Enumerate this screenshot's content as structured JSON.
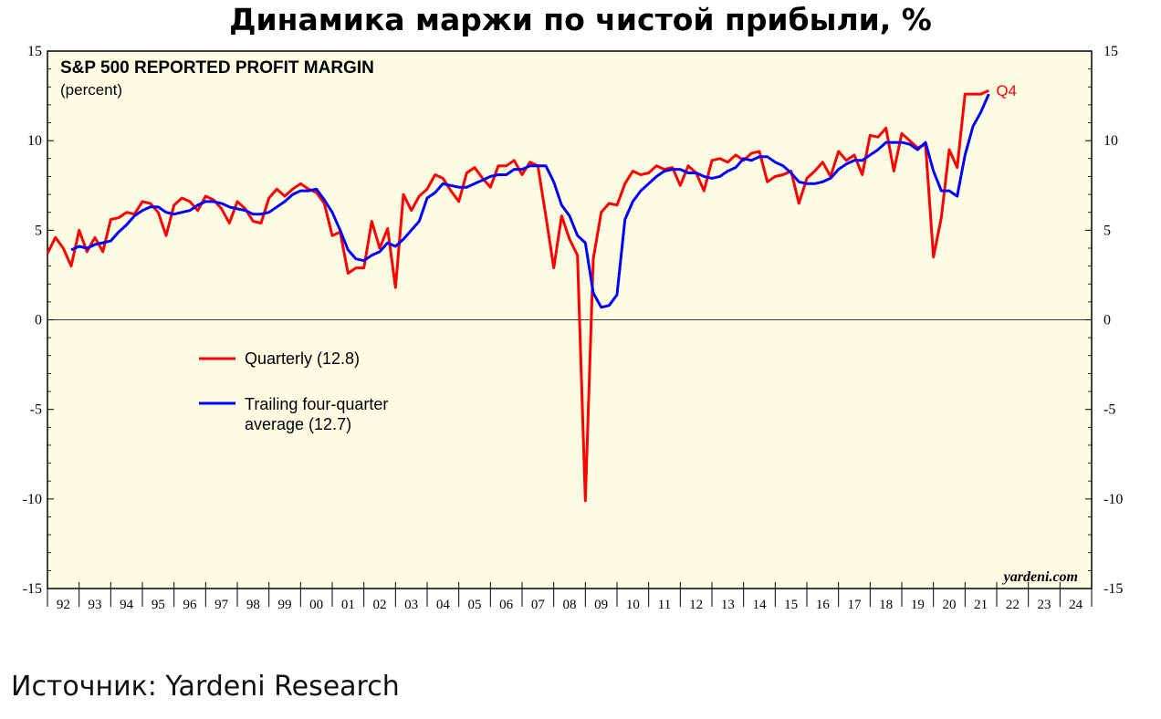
{
  "page": {
    "title": "Динамика маржи по чистой прибыли, %",
    "source": "Источник: Yardeni Research"
  },
  "chart_data": {
    "type": "line",
    "title": "S&P 500 REPORTED PROFIT MARGIN",
    "subtitle": "(percent)",
    "watermark": "yardeni.com",
    "ylim": [
      -15,
      15
    ],
    "yticks": [
      15,
      10,
      5,
      0,
      -5,
      -10,
      -15
    ],
    "y_tick_labels": [
      "15",
      "10",
      "5",
      "0",
      "-5",
      "-10",
      "-15"
    ],
    "xlim": [
      1992,
      2025
    ],
    "x_tick_labels": [
      "92",
      "93",
      "94",
      "95",
      "96",
      "97",
      "98",
      "99",
      "00",
      "01",
      "02",
      "03",
      "04",
      "05",
      "06",
      "07",
      "08",
      "09",
      "10",
      "11",
      "12",
      "13",
      "14",
      "15",
      "16",
      "17",
      "18",
      "19",
      "20",
      "21",
      "22",
      "23",
      "24"
    ],
    "background": "#fdfde4",
    "grid": false,
    "zero_line": true,
    "legend_position": "left-middle",
    "end_annotation": {
      "text": "Q4",
      "series": "Quarterly (12.8)"
    },
    "series": [
      {
        "name": "Quarterly (12.8)",
        "color": "#ff0000",
        "points": [
          [
            1992.0,
            3.7
          ],
          [
            1992.25,
            4.6
          ],
          [
            1992.5,
            4.0
          ],
          [
            1992.75,
            3.0
          ],
          [
            1993.0,
            5.0
          ],
          [
            1993.25,
            3.8
          ],
          [
            1993.5,
            4.6
          ],
          [
            1993.75,
            3.8
          ],
          [
            1994.0,
            5.6
          ],
          [
            1994.25,
            5.7
          ],
          [
            1994.5,
            6.0
          ],
          [
            1994.75,
            5.9
          ],
          [
            1995.0,
            6.6
          ],
          [
            1995.25,
            6.5
          ],
          [
            1995.5,
            6.0
          ],
          [
            1995.75,
            4.7
          ],
          [
            1996.0,
            6.4
          ],
          [
            1996.25,
            6.8
          ],
          [
            1996.5,
            6.6
          ],
          [
            1996.75,
            6.1
          ],
          [
            1997.0,
            6.9
          ],
          [
            1997.25,
            6.7
          ],
          [
            1997.5,
            6.2
          ],
          [
            1997.75,
            5.4
          ],
          [
            1998.0,
            6.6
          ],
          [
            1998.25,
            6.2
          ],
          [
            1998.5,
            5.5
          ],
          [
            1998.75,
            5.4
          ],
          [
            1999.0,
            6.8
          ],
          [
            1999.25,
            7.3
          ],
          [
            1999.5,
            6.9
          ],
          [
            1999.75,
            7.3
          ],
          [
            2000.0,
            7.6
          ],
          [
            2000.25,
            7.3
          ],
          [
            2000.5,
            7.1
          ],
          [
            2000.75,
            6.5
          ],
          [
            2001.0,
            4.7
          ],
          [
            2001.25,
            4.9
          ],
          [
            2001.5,
            2.6
          ],
          [
            2001.75,
            2.9
          ],
          [
            2002.0,
            2.9
          ],
          [
            2002.25,
            5.5
          ],
          [
            2002.5,
            4.0
          ],
          [
            2002.75,
            5.1
          ],
          [
            2003.0,
            1.8
          ],
          [
            2003.25,
            7.0
          ],
          [
            2003.5,
            6.1
          ],
          [
            2003.75,
            6.9
          ],
          [
            2004.0,
            7.3
          ],
          [
            2004.25,
            8.1
          ],
          [
            2004.5,
            7.9
          ],
          [
            2004.75,
            7.2
          ],
          [
            2005.0,
            6.6
          ],
          [
            2005.25,
            8.2
          ],
          [
            2005.5,
            8.5
          ],
          [
            2005.75,
            7.9
          ],
          [
            2006.0,
            7.4
          ],
          [
            2006.25,
            8.6
          ],
          [
            2006.5,
            8.6
          ],
          [
            2006.75,
            8.9
          ],
          [
            2007.0,
            8.1
          ],
          [
            2007.25,
            8.8
          ],
          [
            2007.5,
            8.6
          ],
          [
            2007.75,
            5.8
          ],
          [
            2008.0,
            2.9
          ],
          [
            2008.25,
            5.8
          ],
          [
            2008.5,
            4.5
          ],
          [
            2008.75,
            3.6
          ],
          [
            2009.0,
            -10.1
          ],
          [
            2009.25,
            3.4
          ],
          [
            2009.5,
            6.0
          ],
          [
            2009.75,
            6.5
          ],
          [
            2010.0,
            6.4
          ],
          [
            2010.25,
            7.6
          ],
          [
            2010.5,
            8.3
          ],
          [
            2010.75,
            8.1
          ],
          [
            2011.0,
            8.2
          ],
          [
            2011.25,
            8.6
          ],
          [
            2011.5,
            8.4
          ],
          [
            2011.75,
            8.5
          ],
          [
            2012.0,
            7.5
          ],
          [
            2012.25,
            8.6
          ],
          [
            2012.5,
            8.2
          ],
          [
            2012.75,
            7.2
          ],
          [
            2013.0,
            8.9
          ],
          [
            2013.25,
            9.0
          ],
          [
            2013.5,
            8.8
          ],
          [
            2013.75,
            9.2
          ],
          [
            2014.0,
            8.9
          ],
          [
            2014.25,
            9.3
          ],
          [
            2014.5,
            9.4
          ],
          [
            2014.75,
            7.7
          ],
          [
            2015.0,
            8.0
          ],
          [
            2015.25,
            8.1
          ],
          [
            2015.5,
            8.3
          ],
          [
            2015.75,
            6.5
          ],
          [
            2016.0,
            7.9
          ],
          [
            2016.25,
            8.3
          ],
          [
            2016.5,
            8.8
          ],
          [
            2016.75,
            8.0
          ],
          [
            2017.0,
            9.4
          ],
          [
            2017.25,
            8.9
          ],
          [
            2017.5,
            9.2
          ],
          [
            2017.75,
            8.1
          ],
          [
            2018.0,
            10.3
          ],
          [
            2018.25,
            10.2
          ],
          [
            2018.5,
            10.7
          ],
          [
            2018.75,
            8.3
          ],
          [
            2019.0,
            10.4
          ],
          [
            2019.25,
            10.0
          ],
          [
            2019.5,
            9.6
          ],
          [
            2019.75,
            9.8
          ],
          [
            2020.0,
            3.5
          ],
          [
            2020.25,
            5.7
          ],
          [
            2020.5,
            9.5
          ],
          [
            2020.75,
            8.5
          ],
          [
            2021.0,
            12.6
          ],
          [
            2021.25,
            12.6
          ],
          [
            2021.5,
            12.6
          ],
          [
            2021.75,
            12.8
          ]
        ]
      },
      {
        "name": "Trailing four-quarter average (12.7)",
        "color": "#0000ff",
        "points": [
          [
            1992.75,
            3.9
          ],
          [
            1993.0,
            4.1
          ],
          [
            1993.25,
            4.0
          ],
          [
            1993.5,
            4.2
          ],
          [
            1993.75,
            4.3
          ],
          [
            1994.0,
            4.4
          ],
          [
            1994.25,
            4.9
          ],
          [
            1994.5,
            5.3
          ],
          [
            1994.75,
            5.8
          ],
          [
            1995.0,
            6.1
          ],
          [
            1995.25,
            6.3
          ],
          [
            1995.5,
            6.3
          ],
          [
            1995.75,
            6.0
          ],
          [
            1996.0,
            5.9
          ],
          [
            1996.25,
            6.0
          ],
          [
            1996.5,
            6.1
          ],
          [
            1996.75,
            6.4
          ],
          [
            1997.0,
            6.6
          ],
          [
            1997.25,
            6.6
          ],
          [
            1997.5,
            6.5
          ],
          [
            1997.75,
            6.3
          ],
          [
            1998.0,
            6.2
          ],
          [
            1998.25,
            6.1
          ],
          [
            1998.5,
            5.9
          ],
          [
            1998.75,
            5.9
          ],
          [
            1999.0,
            6.0
          ],
          [
            1999.25,
            6.3
          ],
          [
            1999.5,
            6.6
          ],
          [
            1999.75,
            7.0
          ],
          [
            2000.0,
            7.2
          ],
          [
            2000.25,
            7.2
          ],
          [
            2000.5,
            7.3
          ],
          [
            2000.75,
            6.7
          ],
          [
            2001.0,
            6.0
          ],
          [
            2001.25,
            5.0
          ],
          [
            2001.5,
            3.9
          ],
          [
            2001.75,
            3.4
          ],
          [
            2002.0,
            3.3
          ],
          [
            2002.25,
            3.6
          ],
          [
            2002.5,
            3.8
          ],
          [
            2002.75,
            4.3
          ],
          [
            2003.0,
            4.1
          ],
          [
            2003.25,
            4.5
          ],
          [
            2003.5,
            5.0
          ],
          [
            2003.75,
            5.5
          ],
          [
            2004.0,
            6.8
          ],
          [
            2004.25,
            7.1
          ],
          [
            2004.5,
            7.6
          ],
          [
            2004.75,
            7.5
          ],
          [
            2005.0,
            7.4
          ],
          [
            2005.25,
            7.4
          ],
          [
            2005.5,
            7.6
          ],
          [
            2005.75,
            7.8
          ],
          [
            2006.0,
            8.0
          ],
          [
            2006.25,
            8.1
          ],
          [
            2006.5,
            8.1
          ],
          [
            2006.75,
            8.4
          ],
          [
            2007.0,
            8.4
          ],
          [
            2007.25,
            8.6
          ],
          [
            2007.5,
            8.6
          ],
          [
            2007.75,
            8.6
          ],
          [
            2008.0,
            7.7
          ],
          [
            2008.25,
            6.4
          ],
          [
            2008.5,
            5.8
          ],
          [
            2008.75,
            4.7
          ],
          [
            2009.0,
            4.3
          ],
          [
            2009.25,
            1.5
          ],
          [
            2009.5,
            0.7
          ],
          [
            2009.75,
            0.8
          ],
          [
            2010.0,
            1.4
          ],
          [
            2010.25,
            5.6
          ],
          [
            2010.5,
            6.6
          ],
          [
            2010.75,
            7.2
          ],
          [
            2011.0,
            7.6
          ],
          [
            2011.25,
            8.0
          ],
          [
            2011.5,
            8.3
          ],
          [
            2011.75,
            8.4
          ],
          [
            2012.0,
            8.4
          ],
          [
            2012.25,
            8.2
          ],
          [
            2012.5,
            8.2
          ],
          [
            2012.75,
            8.0
          ],
          [
            2013.0,
            7.9
          ],
          [
            2013.25,
            8.0
          ],
          [
            2013.5,
            8.3
          ],
          [
            2013.75,
            8.5
          ],
          [
            2014.0,
            9.0
          ],
          [
            2014.25,
            8.9
          ],
          [
            2014.5,
            9.1
          ],
          [
            2014.75,
            9.1
          ],
          [
            2015.0,
            8.8
          ],
          [
            2015.25,
            8.6
          ],
          [
            2015.5,
            8.2
          ],
          [
            2015.75,
            7.7
          ],
          [
            2016.0,
            7.6
          ],
          [
            2016.25,
            7.6
          ],
          [
            2016.5,
            7.7
          ],
          [
            2016.75,
            7.9
          ],
          [
            2017.0,
            8.4
          ],
          [
            2017.25,
            8.7
          ],
          [
            2017.5,
            8.9
          ],
          [
            2017.75,
            8.9
          ],
          [
            2018.0,
            9.2
          ],
          [
            2018.25,
            9.5
          ],
          [
            2018.5,
            9.9
          ],
          [
            2018.75,
            9.9
          ],
          [
            2019.0,
            9.9
          ],
          [
            2019.25,
            9.8
          ],
          [
            2019.5,
            9.5
          ],
          [
            2019.75,
            9.9
          ],
          [
            2020.0,
            8.3
          ],
          [
            2020.25,
            7.2
          ],
          [
            2020.5,
            7.2
          ],
          [
            2020.75,
            6.9
          ],
          [
            2021.0,
            9.2
          ],
          [
            2021.25,
            10.8
          ],
          [
            2021.5,
            11.6
          ],
          [
            2021.75,
            12.6
          ]
        ]
      }
    ]
  }
}
